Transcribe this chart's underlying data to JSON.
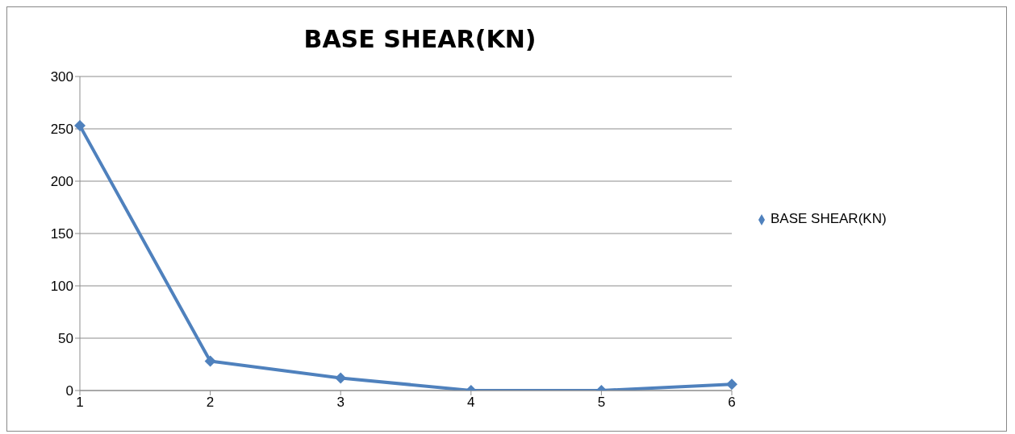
{
  "chart_data": {
    "type": "line",
    "title": "BASE SHEAR(KN)",
    "categories": [
      "1",
      "2",
      "3",
      "4",
      "5",
      "6"
    ],
    "series": [
      {
        "name": "BASE SHEAR(KN)",
        "color": "#4f81bd",
        "values": [
          253,
          28,
          12,
          0,
          0,
          6
        ]
      }
    ],
    "ylim": [
      0,
      300
    ],
    "yticks": [
      0,
      50,
      100,
      150,
      200,
      250,
      300
    ],
    "grid": "y",
    "legend": "right",
    "marker": "diamond"
  }
}
